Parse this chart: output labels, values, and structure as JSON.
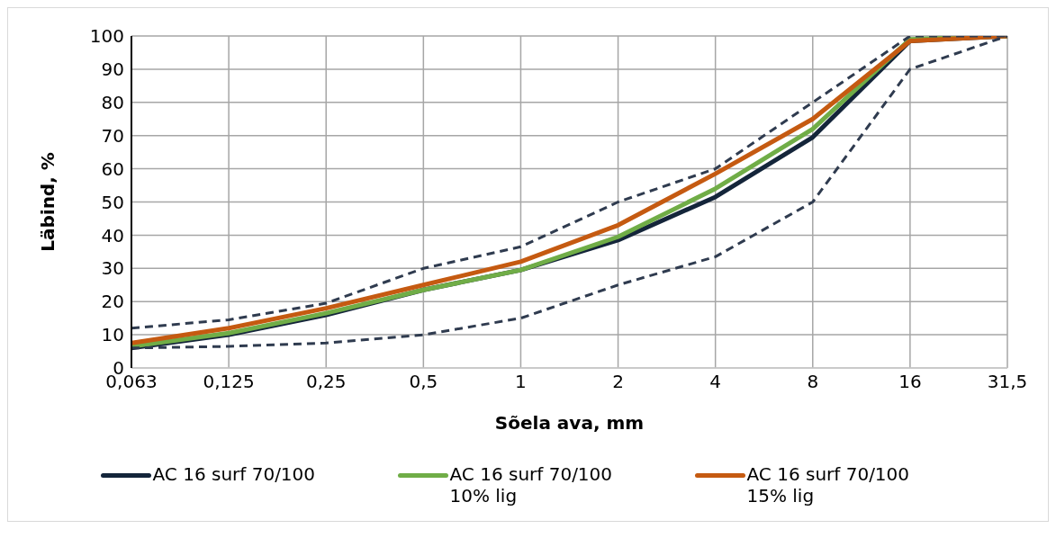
{
  "chart_data": {
    "type": "line",
    "xlabel": "Sõela ava, mm",
    "ylabel": "Läbind, %",
    "categories": [
      "0,063",
      "0,125",
      "0,25",
      "0,5",
      "1",
      "2",
      "4",
      "8",
      "16",
      "31,5"
    ],
    "series": [
      {
        "name": "AC 16 surf 70/100",
        "color": "#14253a",
        "values": [
          6,
          10,
          16,
          23.5,
          29.5,
          38.5,
          51.5,
          69.5,
          98.5,
          100
        ]
      },
      {
        "name": "AC 16 surf 70/100 10% lig",
        "color": "#70ad47",
        "values": [
          6.5,
          10.5,
          16.5,
          23.5,
          29.5,
          39.5,
          54,
          72,
          99,
          100
        ]
      },
      {
        "name": "AC 16 surf 70/100 15% lig",
        "color": "#c55a11",
        "values": [
          7.5,
          12,
          18,
          25,
          32,
          43,
          58.5,
          75,
          98.5,
          100
        ]
      },
      {
        "color": "#2f3b4f",
        "line_style": "dashed",
        "values": [
          12,
          14.5,
          19.5,
          30,
          36.5,
          50,
          60,
          80,
          100,
          100
        ]
      },
      {
        "color": "#2f3b4f",
        "line_style": "dashed",
        "values": [
          6,
          6.5,
          7.5,
          10,
          15,
          25,
          33.5,
          50,
          90,
          100
        ]
      }
    ],
    "ylim": [
      0,
      100
    ],
    "yticks": [
      0,
      10,
      20,
      30,
      40,
      50,
      60,
      70,
      80,
      90,
      100
    ],
    "grid": true,
    "legend": "bottom",
    "marker": "none",
    "line_style": "solid"
  }
}
